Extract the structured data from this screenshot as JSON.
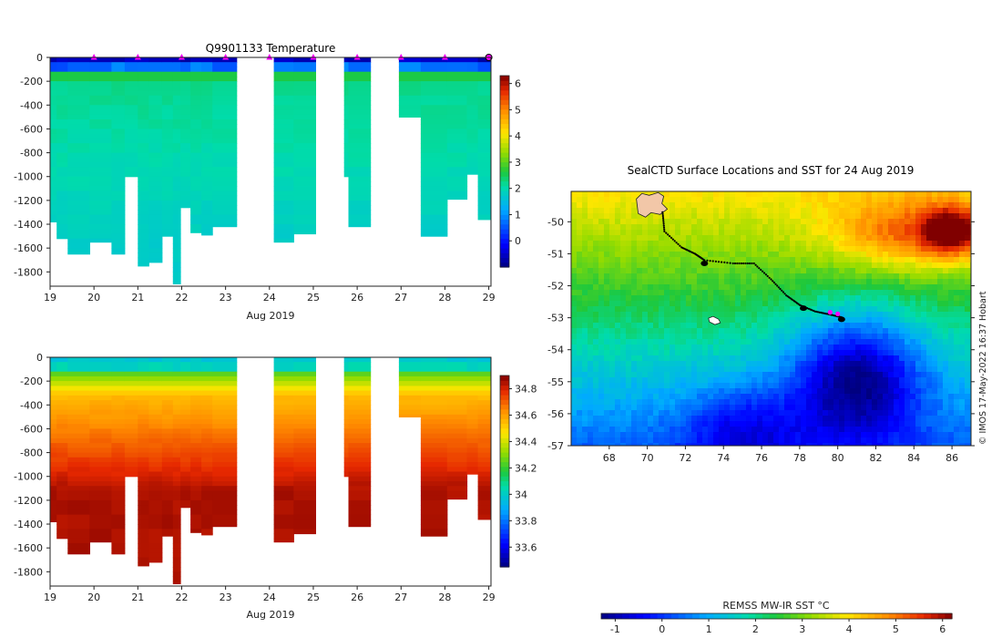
{
  "chart_data": [
    {
      "type": "heatmap",
      "title": "Q9901133  Temperature",
      "xlabel": "Aug 2019",
      "ylabel": "",
      "xlim": [
        19,
        29.05
      ],
      "ylim": [
        -1920,
        0
      ],
      "x_ticks": [
        19,
        20,
        21,
        22,
        23,
        24,
        25,
        26,
        27,
        28,
        29
      ],
      "x_tick_labels": [
        "19",
        "20",
        "21",
        "22",
        "23",
        "24",
        "25",
        "26",
        "27",
        "28",
        "29"
      ],
      "y_ticks": [
        0,
        -200,
        -400,
        -600,
        -800,
        -1000,
        -1200,
        -1400,
        -1600,
        -1800
      ],
      "y_tick_labels": [
        "0",
        "-200",
        "-400",
        "-600",
        "-800",
        "-1000",
        "-1200",
        "-1400",
        "-1600",
        "-1800"
      ],
      "colorbar": {
        "min": -1,
        "max": 6.3,
        "ticks": [
          0,
          1,
          2,
          3,
          4,
          5,
          6
        ],
        "labels": [
          "0",
          "1",
          "2",
          "3",
          "4",
          "5",
          "6"
        ]
      },
      "variable": "temperature",
      "profile_markers_day": [
        20,
        21,
        22,
        23,
        24,
        25,
        26,
        27,
        28
      ],
      "profiles": [
        {
          "t": 19.0,
          "w": 0.15,
          "depth": 1380
        },
        {
          "t": 19.15,
          "w": 0.25,
          "depth": 1520
        },
        {
          "t": 19.4,
          "w": 0.5,
          "depth": 1650
        },
        {
          "t": 19.9,
          "w": 0.5,
          "depth": 1550
        },
        {
          "t": 20.4,
          "w": 0.3,
          "depth": 1650
        },
        {
          "t": 20.7,
          "w": 0.3,
          "depth": 1000
        },
        {
          "t": 21.0,
          "w": 0.25,
          "depth": 1750
        },
        {
          "t": 21.25,
          "w": 0.3,
          "depth": 1720
        },
        {
          "t": 21.55,
          "w": 0.25,
          "depth": 1500
        },
        {
          "t": 21.8,
          "w": 0.17,
          "depth": 1900
        },
        {
          "t": 21.97,
          "w": 0.23,
          "depth": 1260
        },
        {
          "t": 22.2,
          "w": 0.25,
          "depth": 1470
        },
        {
          "t": 22.45,
          "w": 0.25,
          "depth": 1490
        },
        {
          "t": 22.7,
          "w": 0.55,
          "depth": 1420
        },
        {
          "t": 24.1,
          "w": 0.45,
          "depth": 1550
        },
        {
          "t": 24.55,
          "w": 0.5,
          "depth": 1480
        },
        {
          "t": 25.7,
          "w": 0.1,
          "depth": 1000
        },
        {
          "t": 25.8,
          "w": 0.5,
          "depth": 1420
        },
        {
          "t": 26.95,
          "w": 0.5,
          "depth": 500
        },
        {
          "t": 27.45,
          "w": 0.6,
          "depth": 1500
        },
        {
          "t": 28.05,
          "w": 0.45,
          "depth": 1190
        },
        {
          "t": 28.5,
          "w": 0.25,
          "depth": 980
        },
        {
          "t": 28.75,
          "w": 0.3,
          "depth": 1360
        }
      ]
    },
    {
      "type": "heatmap",
      "title": "",
      "xlabel": "Aug 2019",
      "ylabel": "",
      "xlim": [
        19,
        29.05
      ],
      "ylim": [
        -1920,
        0
      ],
      "x_ticks": [
        19,
        20,
        21,
        22,
        23,
        24,
        25,
        26,
        27,
        28,
        29
      ],
      "x_tick_labels": [
        "19",
        "20",
        "21",
        "22",
        "23",
        "24",
        "25",
        "26",
        "27",
        "28",
        "29"
      ],
      "y_ticks": [
        0,
        -200,
        -400,
        -600,
        -800,
        -1000,
        -1200,
        -1400,
        -1600,
        -1800
      ],
      "y_tick_labels": [
        "0",
        "-200",
        "-400",
        "-600",
        "-800",
        "-1000",
        "-1200",
        "-1400",
        "-1600",
        "-1800"
      ],
      "colorbar": {
        "min": 33.45,
        "max": 34.9,
        "ticks": [
          33.6,
          33.8,
          34,
          34.2,
          34.4,
          34.6,
          34.8
        ],
        "labels": [
          "33.6",
          "33.8",
          "34",
          "34.2",
          "34.4",
          "34.6",
          "34.8"
        ]
      },
      "variable": "salinity",
      "profiles_same_as_panel": 0
    },
    {
      "type": "heatmap",
      "title": "SealCTD Surface Locations and SST for 24 Aug 2019",
      "xlabel": "",
      "ylabel": "",
      "xlim": [
        66,
        87
      ],
      "ylim": [
        -57,
        -49.05
      ],
      "x_ticks": [
        68,
        70,
        72,
        74,
        76,
        78,
        80,
        82,
        84,
        86
      ],
      "x_tick_labels": [
        "68",
        "70",
        "72",
        "74",
        "76",
        "78",
        "80",
        "82",
        "84",
        "86"
      ],
      "y_ticks": [
        -50,
        -51,
        -52,
        -53,
        -54,
        -55,
        -56,
        -57
      ],
      "y_tick_labels": [
        "-50",
        "-51",
        "-52",
        "-53",
        "-54",
        "-55",
        "-56",
        "-57"
      ],
      "colorbar": {
        "label": "REMSS MW-IR SST °C",
        "min": -1.3,
        "max": 6.2,
        "ticks": [
          -1,
          0,
          1,
          2,
          3,
          4,
          5,
          6
        ],
        "labels": [
          "-1",
          "0",
          "1",
          "2",
          "3",
          "4",
          "5",
          "6"
        ]
      },
      "track": [
        [
          70.8,
          -49.7
        ],
        [
          70.9,
          -50.3
        ],
        [
          71.8,
          -50.8
        ],
        [
          72.5,
          -51.0
        ],
        [
          73.0,
          -51.2
        ],
        [
          74.5,
          -51.3
        ],
        [
          75.6,
          -51.3
        ],
        [
          76.5,
          -51.8
        ],
        [
          77.3,
          -52.3
        ],
        [
          78.0,
          -52.6
        ],
        [
          78.8,
          -52.8
        ],
        [
          79.6,
          -52.9
        ],
        [
          80.3,
          -53.0
        ]
      ],
      "track_dense": [
        [
          73.0,
          -51.3
        ],
        [
          78.2,
          -52.7
        ],
        [
          80.2,
          -53.05
        ]
      ],
      "magenta_locations": [
        [
          79.6,
          -52.83
        ],
        [
          80.0,
          -52.88
        ]
      ],
      "land": [
        {
          "lon": 70.0,
          "lat": -49.4,
          "name": "kerguelen"
        },
        {
          "lon": 73.5,
          "lat": -53.1,
          "name": "heard"
        }
      ]
    }
  ],
  "colors": {
    "magenta": "#ff00ff",
    "track": "#000000",
    "land": "#f2c7a8"
  },
  "credit": "© IMOS 17-May-2022 16:37 Hobart"
}
